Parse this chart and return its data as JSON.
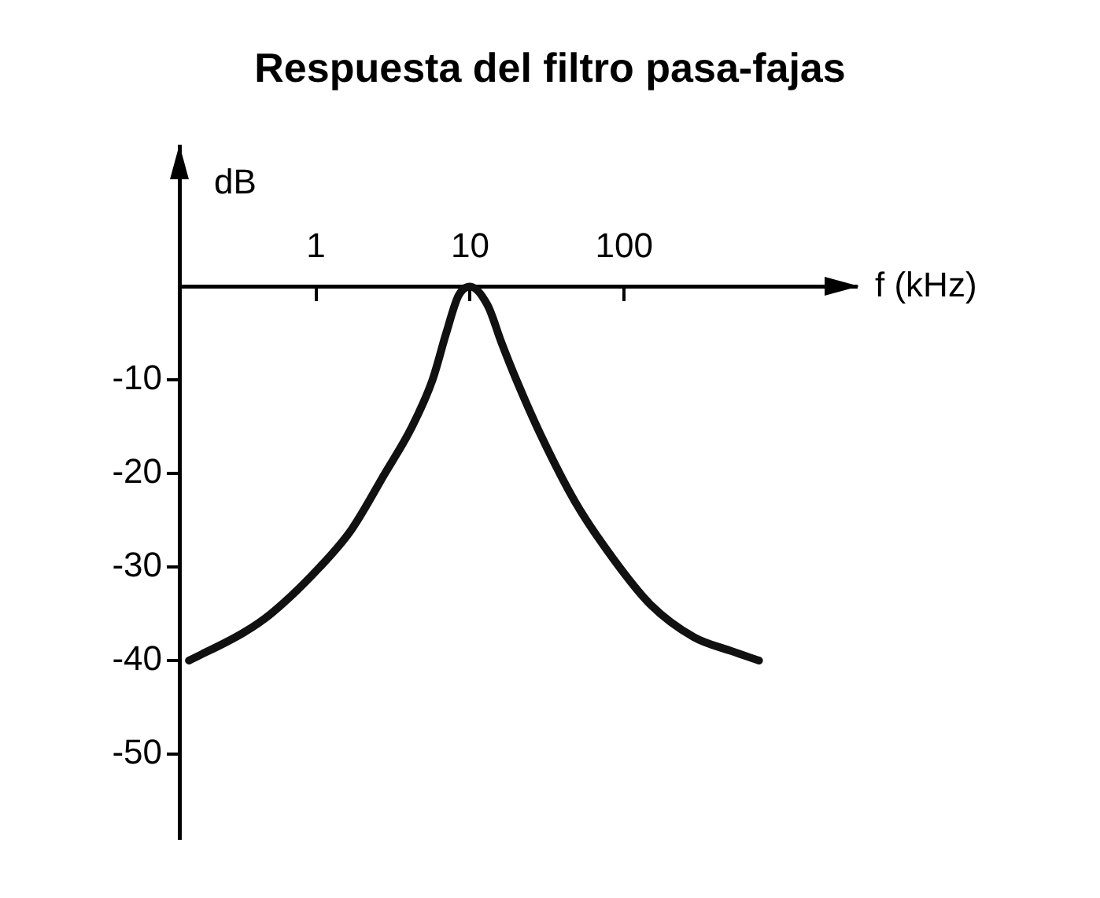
{
  "chart_data": {
    "type": "line",
    "title": "Respuesta del filtro pasa-fajas",
    "xlabel": "f (kHz)",
    "ylabel": "dB",
    "x": [
      0.15,
      0.34,
      0.51,
      1.06,
      1.7,
      2.8,
      4.2,
      5.7,
      7,
      8.4,
      10,
      13,
      16,
      20,
      29,
      48,
      84,
      148,
      284,
      500,
      750
    ],
    "series": [
      {
        "color": "#111111",
        "values": [
          -40,
          -37,
          -35,
          -30,
          -26,
          -20,
          -15,
          -10,
          -5,
          -1,
          0,
          -2,
          -6,
          -10,
          -16,
          -23,
          -29,
          -34,
          -37.5,
          -39,
          -40
        ]
      }
    ],
    "log": "x",
    "xlim": [
      0.13,
      3200
    ],
    "xticks": [
      1,
      10,
      100
    ],
    "ylim": [
      -59,
      15
    ],
    "yticks": [
      -50,
      -40,
      -30,
      -20,
      -10
    ],
    "grid": false,
    "legend": false,
    "marker": "none",
    "line_style": "solid"
  }
}
